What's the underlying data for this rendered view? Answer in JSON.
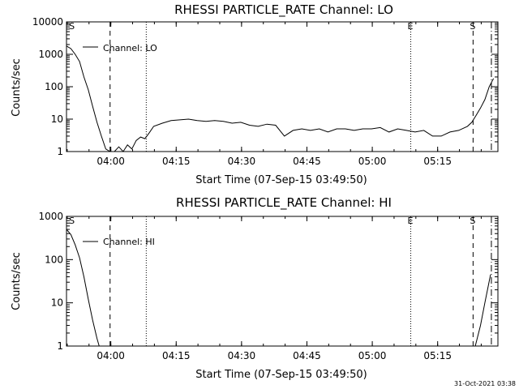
{
  "chart_data": [
    {
      "type": "line",
      "title": "RHESSI PARTICLE_RATE Channel: LO",
      "xlabel": "Start Time (07-Sep-15 03:49:50)",
      "ylabel": "Counts/sec",
      "yscale": "log",
      "ylim": [
        1,
        10000
      ],
      "xlim_minutes": [
        0,
        99
      ],
      "x_ticks": [
        {
          "m": 10.17,
          "label": "04:00"
        },
        {
          "m": 25.17,
          "label": "04:15"
        },
        {
          "m": 40.17,
          "label": "04:30"
        },
        {
          "m": 55.17,
          "label": "04:45"
        },
        {
          "m": 70.17,
          "label": "05:00"
        },
        {
          "m": 85.17,
          "label": "05:15"
        }
      ],
      "y_ticks": [
        {
          "v": 1,
          "label": "1"
        },
        {
          "v": 10,
          "label": "10"
        },
        {
          "v": 100,
          "label": "100"
        },
        {
          "v": 1000,
          "label": "1000"
        },
        {
          "v": 10000,
          "label": "10000"
        }
      ],
      "legend": {
        "label": "Channel: LO",
        "placement": "top-left"
      },
      "markers": [
        {
          "m": 0.2,
          "style": "none",
          "label": "S"
        },
        {
          "m": 10.0,
          "style": "dashed",
          "label": ""
        },
        {
          "m": 18.3,
          "style": "dotted",
          "label": ""
        },
        {
          "m": 79.0,
          "style": "dotted",
          "label": "E"
        },
        {
          "m": 93.3,
          "style": "dashed",
          "label": "S"
        },
        {
          "m": 97.5,
          "style": "dashdot",
          "label": ""
        }
      ],
      "series": [
        {
          "x": [
            0,
            1,
            2,
            3,
            4,
            5,
            6,
            7,
            8,
            9,
            10,
            11,
            12,
            13,
            14,
            15,
            16,
            17,
            18,
            19,
            20,
            22,
            24,
            26,
            28,
            30,
            32,
            34,
            36,
            38,
            40,
            42,
            44,
            46,
            48,
            50,
            52,
            54,
            56,
            58,
            60,
            62,
            64,
            66,
            68,
            70,
            72,
            74,
            76,
            78,
            80,
            82,
            84,
            86,
            88,
            90,
            92,
            93,
            94,
            95,
            96,
            97,
            98
          ],
          "y": [
            1800,
            1500,
            1000,
            600,
            200,
            80,
            25,
            8,
            3,
            1.2,
            1,
            1,
            1.4,
            1,
            1.6,
            1.2,
            2.2,
            2.8,
            2.5,
            3.8,
            6,
            7.5,
            9,
            9.5,
            10,
            9,
            8.5,
            9,
            8.5,
            7.5,
            8,
            6.5,
            6,
            7,
            6.5,
            3,
            4.5,
            5,
            4.5,
            5,
            4,
            5,
            5,
            4.5,
            5,
            5,
            5.5,
            4,
            5,
            4.5,
            4,
            4.5,
            3,
            3,
            4,
            4.5,
            6,
            8,
            13,
            22,
            40,
            100,
            180
          ]
        }
      ]
    },
    {
      "type": "line",
      "title": "RHESSI PARTICLE_RATE Channel: HI",
      "xlabel": "Start Time (07-Sep-15 03:49:50)",
      "ylabel": "Counts/sec",
      "yscale": "log",
      "ylim": [
        1,
        1000
      ],
      "xlim_minutes": [
        0,
        99
      ],
      "x_ticks": [
        {
          "m": 10.17,
          "label": "04:00"
        },
        {
          "m": 25.17,
          "label": "04:15"
        },
        {
          "m": 40.17,
          "label": "04:30"
        },
        {
          "m": 55.17,
          "label": "04:45"
        },
        {
          "m": 70.17,
          "label": "05:00"
        },
        {
          "m": 85.17,
          "label": "05:15"
        }
      ],
      "y_ticks": [
        {
          "v": 1,
          "label": "1"
        },
        {
          "v": 10,
          "label": "10"
        },
        {
          "v": 100,
          "label": "100"
        },
        {
          "v": 1000,
          "label": "1000"
        }
      ],
      "legend": {
        "label": "Channel: HI",
        "placement": "top-left"
      },
      "markers": [
        {
          "m": 0.2,
          "style": "none",
          "label": "S"
        },
        {
          "m": 10.0,
          "style": "dashed",
          "label": ""
        },
        {
          "m": 18.3,
          "style": "dotted",
          "label": ""
        },
        {
          "m": 79.0,
          "style": "dotted",
          "label": "E"
        },
        {
          "m": 93.3,
          "style": "dashed",
          "label": "S"
        },
        {
          "m": 97.5,
          "style": "dashdot",
          "label": ""
        }
      ],
      "series": [
        {
          "x": [
            0,
            1,
            2,
            3,
            4,
            5,
            6,
            7,
            7.5
          ],
          "y": [
            500,
            380,
            220,
            110,
            40,
            12,
            4,
            1.5,
            1
          ]
        },
        {
          "x": [
            93.8,
            95,
            96,
            96.8,
            97.3
          ],
          "y": [
            1,
            3,
            10,
            25,
            45
          ]
        }
      ]
    }
  ],
  "footer": {
    "timestamp": "31-Oct-2021 03:38"
  }
}
